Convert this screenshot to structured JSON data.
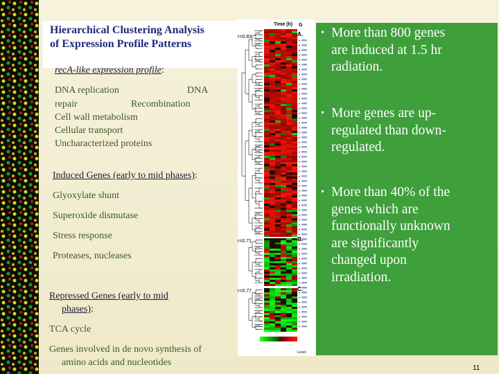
{
  "title": {
    "line1": "Hierarchical Clustering Analysis",
    "line2": "of Expression Profile Patterns"
  },
  "reca_profile": {
    "heading": "recA-like expression profile",
    "heading_suffix": ":",
    "items": [
      "DNA replication",
      "DNA",
      "repair",
      "Recombination",
      "Cell wall metabolism",
      "Cellular transport",
      "Uncharacterized proteins"
    ]
  },
  "induced": {
    "heading": "Induced Genes (early to mid phases)",
    "heading_suffix": ":",
    "items": [
      "Glyoxylate shunt",
      "Superoxide dismutase",
      "Stress response",
      "Proteases, nucleases"
    ]
  },
  "repressed": {
    "heading_line1": "Repressed Genes (early to mid",
    "heading_line2": "phases)",
    "heading_suffix": ":",
    "items": [
      "TCA cycle"
    ],
    "note_line1": "Genes involved in de novo synthesis of",
    "note_line2": "amino acids and nucleotides"
  },
  "figure": {
    "time_label": "Time (h)",
    "panel_a": "A.",
    "panel_b": "B.",
    "panel_c": "C.",
    "r_a": "r=0.83",
    "r_b": "r=0.71",
    "r_c": "r=0.77",
    "legend_label": "Level:",
    "colors": {
      "red": "#e01818",
      "green": "#18b018",
      "dark": "#1a0c08"
    }
  },
  "bullets": [
    {
      "lines": [
        "More than 800 genes",
        "are induced at 1.5 hr",
        "radiation."
      ]
    },
    {
      "lines": [
        "More genes are up-",
        "regulated than down-",
        "regulated."
      ]
    },
    {
      "lines": [
        "More than 40% of the",
        "genes which are",
        "functionally unknown",
        "are significantly",
        "changed upon",
        "irradiation."
      ]
    }
  ],
  "page_number": "11",
  "colors": {
    "title": "#1d2a78",
    "panel": "#3e9f3b",
    "bullet_text": "#ffffff"
  }
}
